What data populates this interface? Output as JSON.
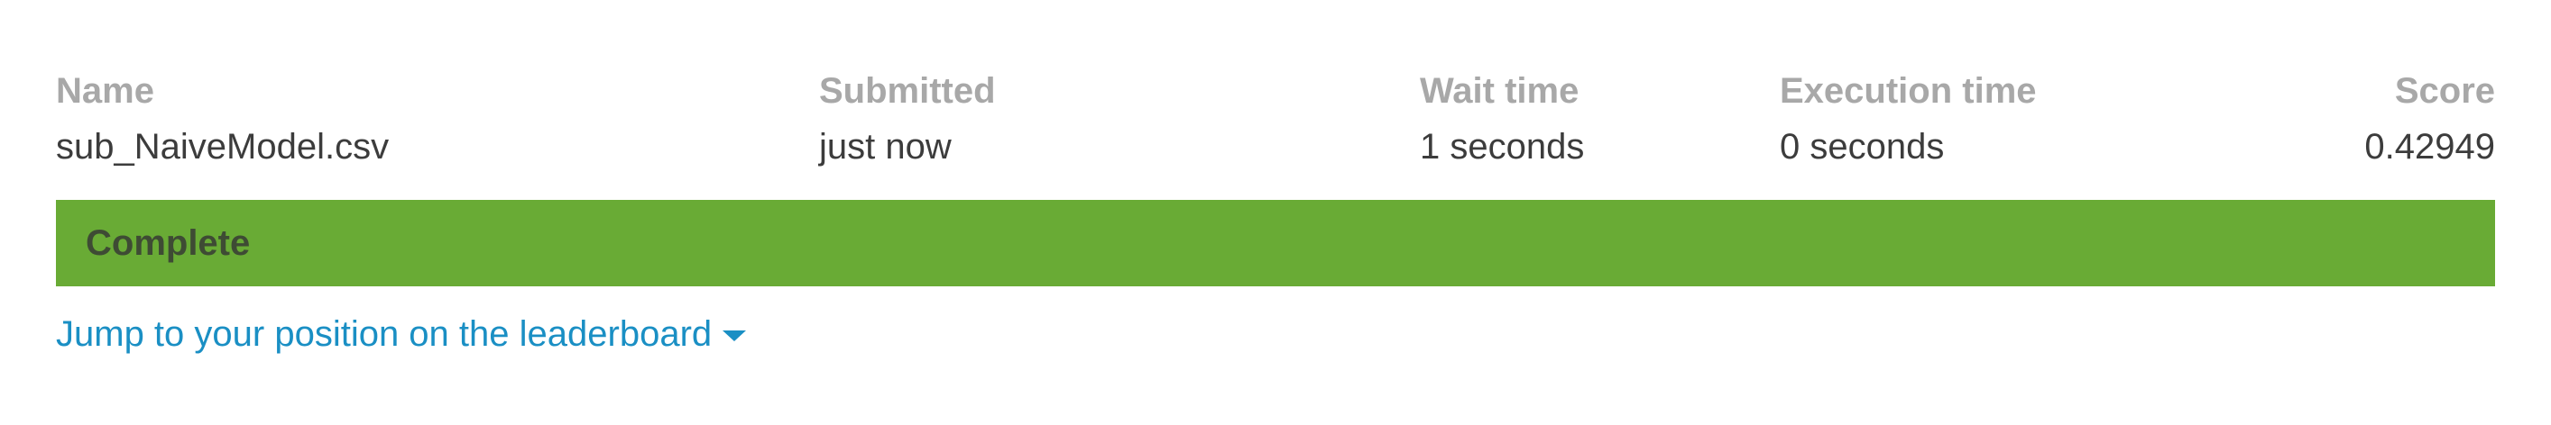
{
  "headers": {
    "name": "Name",
    "submitted": "Submitted",
    "wait": "Wait time",
    "exec": "Execution time",
    "score": "Score"
  },
  "submission": {
    "name": "sub_NaiveModel.csv",
    "submitted": "just now",
    "wait": "1 seconds",
    "exec": "0 seconds",
    "score": "0.42949"
  },
  "status": {
    "label": "Complete",
    "color": "#69ab35"
  },
  "leaderboard_link": {
    "label": "Jump to your position on the leaderboard",
    "icon": "caret-down-icon",
    "color": "#1a8fc4"
  }
}
